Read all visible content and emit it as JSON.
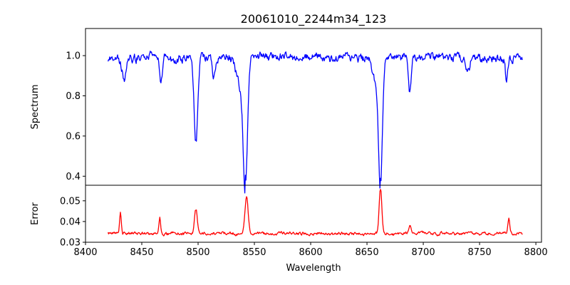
{
  "chart_data": {
    "type": "line",
    "title": "20061010_2244m34_123",
    "xlabel": "Wavelength",
    "xlim": [
      8400,
      8805
    ],
    "xticks": [
      8400,
      8450,
      8500,
      8550,
      8600,
      8650,
      8700,
      8750,
      8800
    ],
    "grid": false,
    "panels": [
      {
        "name": "spectrum-panel",
        "ylabel": "Spectrum",
        "ylim": [
          0.355,
          1.135
        ],
        "yticks": [
          0.4,
          0.6,
          0.8,
          1.0
        ],
        "ytick_labels": [
          "0.4",
          "0.6",
          "0.8",
          "1.0"
        ],
        "series": [
          {
            "color": "#0000ff",
            "x_start": 8420,
            "x_end": 8788,
            "baseline": 0.99,
            "noise": 0.035,
            "features": [
              {
                "center": 8434,
                "depth": 0.1,
                "width": 2.0
              },
              {
                "center": 8467,
                "depth": 0.12,
                "width": 1.2
              },
              {
                "center": 8498,
                "depth": 0.41,
                "width": 1.6
              },
              {
                "center": 8514,
                "depth": 0.1,
                "width": 1.5
              },
              {
                "center": 8542,
                "depth": 0.58,
                "width": 1.8
              },
              {
                "center": 8538,
                "depth": 0.15,
                "width": 3.5
              },
              {
                "center": 8662,
                "depth": 0.6,
                "width": 1.7
              },
              {
                "center": 8658,
                "depth": 0.12,
                "width": 3.0
              },
              {
                "center": 8688,
                "depth": 0.18,
                "width": 1.2
              },
              {
                "center": 8740,
                "depth": 0.08,
                "width": 1.5
              },
              {
                "center": 8774,
                "depth": 0.12,
                "width": 1.0
              }
            ],
            "anchor_points": [
              [
                8498,
                0.58
              ],
              [
                8542,
                0.405
              ],
              [
                8662,
                0.39
              ],
              [
                8688,
                0.82
              ]
            ]
          }
        ]
      },
      {
        "name": "error-panel",
        "ylabel": "Error",
        "ylim": [
          0.03,
          0.0575
        ],
        "yticks": [
          0.03,
          0.04,
          0.05
        ],
        "ytick_labels": [
          "0.03",
          "0.04",
          "0.05"
        ],
        "series": [
          {
            "color": "#ff0000",
            "x_start": 8420,
            "x_end": 8788,
            "baseline": 0.0342,
            "noise": 0.0012,
            "features": [
              {
                "center": 8431,
                "depth": 0.01,
                "width": 0.8
              },
              {
                "center": 8466,
                "depth": 0.008,
                "width": 0.8
              },
              {
                "center": 8498,
                "depth": 0.012,
                "width": 1.2
              },
              {
                "center": 8543,
                "depth": 0.018,
                "width": 1.4
              },
              {
                "center": 8662,
                "depth": 0.022,
                "width": 1.2
              },
              {
                "center": 8688,
                "depth": 0.004,
                "width": 1.0
              },
              {
                "center": 8776,
                "depth": 0.007,
                "width": 0.8
              }
            ],
            "anchor_points": [
              [
                8543,
                0.052
              ],
              [
                8662,
                0.0555
              ],
              [
                8498,
                0.0455
              ],
              [
                8431,
                0.0445
              ]
            ]
          }
        ]
      }
    ]
  }
}
